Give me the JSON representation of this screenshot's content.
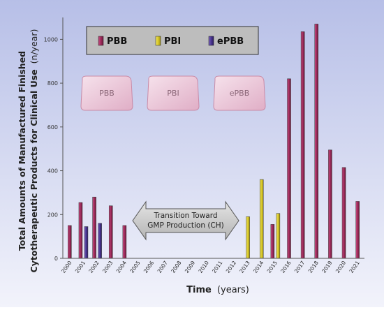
{
  "chart_data": {
    "type": "bar",
    "categories": [
      "2000",
      "2001",
      "2002",
      "2003",
      "2004",
      "2005",
      "2006",
      "2007",
      "2008",
      "2009",
      "2010",
      "2011",
      "2012",
      "2013",
      "2014",
      "2015",
      "2016",
      "2017",
      "2018",
      "2019",
      "2020",
      "2021"
    ],
    "series": [
      {
        "name": "PBB",
        "color": "#9e2c5c",
        "values": [
          150,
          255,
          280,
          240,
          150,
          0,
          0,
          0,
          0,
          0,
          0,
          0,
          0,
          0,
          0,
          155,
          820,
          1035,
          1070,
          495,
          415,
          260
        ]
      },
      {
        "name": "PBI",
        "color": "#d8c82a",
        "values": [
          0,
          0,
          0,
          0,
          0,
          0,
          0,
          0,
          0,
          0,
          0,
          0,
          0,
          190,
          360,
          205,
          0,
          0,
          0,
          0,
          0,
          0
        ]
      },
      {
        "name": "ePBB",
        "color": "#4a3591",
        "values": [
          0,
          145,
          160,
          0,
          0,
          0,
          0,
          0,
          0,
          0,
          0,
          0,
          0,
          0,
          0,
          0,
          0,
          0,
          0,
          0,
          0,
          0
        ]
      }
    ],
    "ylim": [
      0,
      1100
    ],
    "yticks": [
      0,
      200,
      400,
      600,
      800,
      1000
    ],
    "ylabel_line1": "Total Amounts of Manufactured Finished",
    "ylabel_line2_bold": "Cytotherapeutic Products for Clinical Use",
    "ylabel_unit": "(n/year)",
    "xlabel_bold": "Time",
    "xlabel_unit": "(years)",
    "legend_position": "top-left",
    "annotation": {
      "line1": "Transition Toward",
      "line2": "GMP Production (CH)"
    },
    "product_icons": [
      "PBB",
      "PBI",
      "ePBB"
    ],
    "colors": {
      "background_top": "#b7bfe7",
      "background_bottom": "#f2f3fb"
    }
  }
}
